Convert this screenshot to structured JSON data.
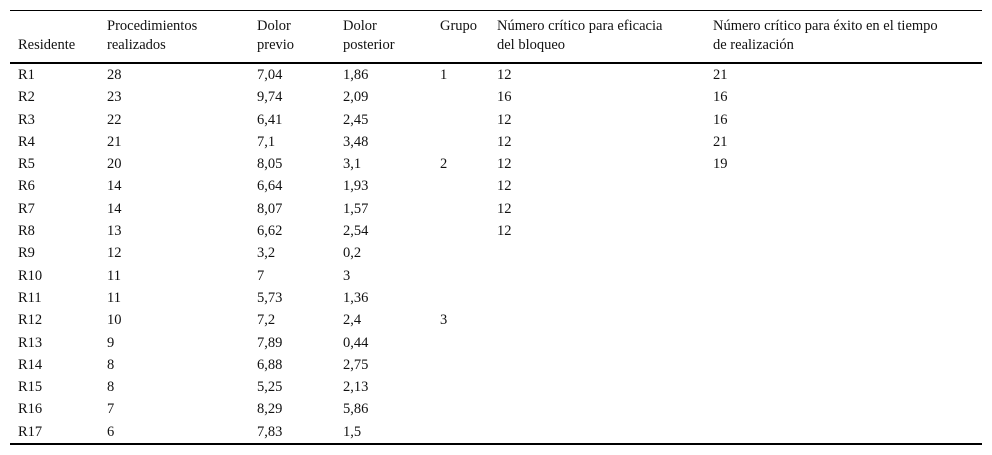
{
  "table": {
    "columns": [
      {
        "key": "residente",
        "label": "Residente"
      },
      {
        "key": "procedimientos_realizados",
        "label": "Procedimientos\nrealizados"
      },
      {
        "key": "dolor_previo",
        "label": "Dolor\nprevio"
      },
      {
        "key": "dolor_posterior",
        "label": "Dolor\nposterior"
      },
      {
        "key": "grupo",
        "label": "Grupo"
      },
      {
        "key": "numero_critico_eficacia_bloqueo",
        "label": "Número crítico para eficacia\ndel bloqueo"
      },
      {
        "key": "numero_critico_exito_tiempo",
        "label": "Número crítico para éxito en el tiempo\nde realización"
      }
    ],
    "rows": [
      [
        "R1",
        "28",
        "7,04",
        "1,86",
        "1",
        "12",
        "21"
      ],
      [
        "R2",
        "23",
        "9,74",
        "2,09",
        "",
        "16",
        "16"
      ],
      [
        "R3",
        "22",
        "6,41",
        "2,45",
        "",
        "12",
        "16"
      ],
      [
        "R4",
        "21",
        "7,1",
        "3,48",
        "",
        "12",
        "21"
      ],
      [
        "R5",
        "20",
        "8,05",
        "3,1",
        "2",
        "12",
        "19"
      ],
      [
        "R6",
        "14",
        "6,64",
        "1,93",
        "",
        "12",
        ""
      ],
      [
        "R7",
        "14",
        "8,07",
        "1,57",
        "",
        "12",
        ""
      ],
      [
        "R8",
        "13",
        "6,62",
        "2,54",
        "",
        "12",
        ""
      ],
      [
        "R9",
        "12",
        "3,2",
        "0,2",
        "",
        "",
        ""
      ],
      [
        "R10",
        "11",
        "7",
        "3",
        "",
        "",
        ""
      ],
      [
        "R11",
        "11",
        "5,73",
        "1,36",
        "",
        "",
        ""
      ],
      [
        "R12",
        "10",
        "7,2",
        "2,4",
        "3",
        "",
        ""
      ],
      [
        "R13",
        "9",
        "7,89",
        "0,44",
        "",
        "",
        ""
      ],
      [
        "R14",
        "8",
        "6,88",
        "2,75",
        "",
        "",
        ""
      ],
      [
        "R15",
        "8",
        "5,25",
        "2,13",
        "",
        "",
        ""
      ],
      [
        "R16",
        "7",
        "8,29",
        "5,86",
        "",
        "",
        ""
      ],
      [
        "R17",
        "6",
        "7,83",
        "1,5",
        "",
        "",
        ""
      ]
    ]
  }
}
